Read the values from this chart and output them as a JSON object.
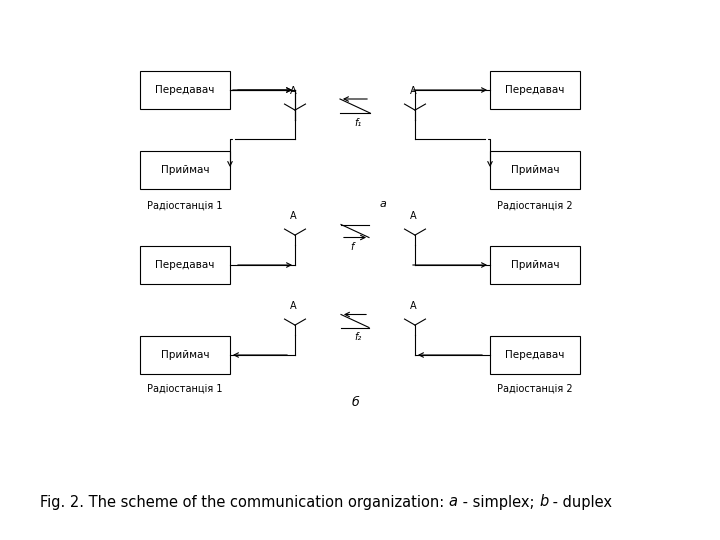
{
  "fig_caption_normal1": "Fig. 2. The scheme of the communication organization: ",
  "fig_caption_italic_a": "a",
  "fig_caption_normal2": " - simplex; ",
  "fig_caption_italic_b": "b",
  "fig_caption_normal3": " - duplex",
  "sec_a_left_top": "Передавач",
  "sec_a_left_bot": "Приймач",
  "sec_a_right_top": "Передавач",
  "sec_a_right_bot": "Приймач",
  "sec_a_station1": "Радіостанція 1",
  "sec_a_station2": "Радіостанція 2",
  "sec_a_freq": "f₁",
  "sec_a_label": "a",
  "sec_b_trans_left": "Передавач",
  "sec_b_recv_right": "Приймач",
  "sec_b_freq_top": "f",
  "sec_b_recv_left": "Приймач",
  "sec_b_trans_right": "Передавач",
  "sec_b_station1": "Радіостанція 1",
  "sec_b_station2": "Радіостанція 2",
  "sec_b_freq_bot": "f₂",
  "sec_b_label": "б",
  "antenna_A": "A",
  "bg_color": "#ffffff"
}
